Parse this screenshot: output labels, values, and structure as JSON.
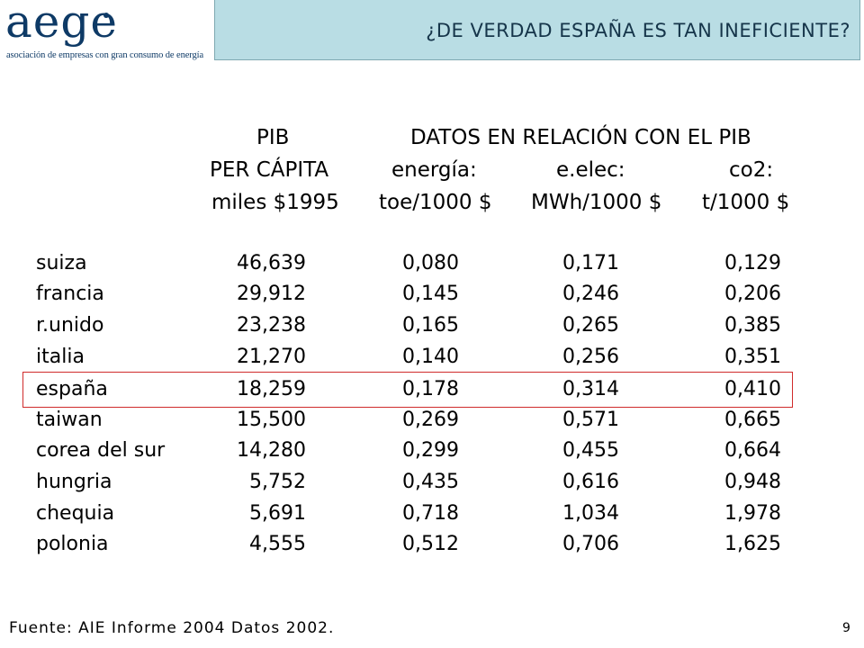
{
  "logo": {
    "wordmark": "aege",
    "tagline": "asociación de empresas con gran consumo de energía",
    "color": "#0e3a66"
  },
  "title": "¿DE VERDAD ESPAÑA ES TAN INEFICIENTE?",
  "header": {
    "pib_line1": "PIB",
    "pib_line2": "PER CÁPITA",
    "pib_line3": "miles $1995",
    "group": "DATOS EN RELACIÓN CON EL PIB",
    "energia_line1": "energía:",
    "energia_line2": "toe/1000 $",
    "elec_line1": "e.elec:",
    "elec_line2": "MWh/1000 $",
    "co2_line1": "co2:",
    "co2_line2": "t/1000 $"
  },
  "rows": [
    {
      "country": "suiza",
      "pib": "46,639",
      "energia": "0,080",
      "elec": "0,171",
      "co2": "0,129"
    },
    {
      "country": "francia",
      "pib": "29,912",
      "energia": "0,145",
      "elec": "0,246",
      "co2": "0,206"
    },
    {
      "country": "r.unido",
      "pib": "23,238",
      "energia": "0,165",
      "elec": "0,265",
      "co2": "0,385"
    },
    {
      "country": "italia",
      "pib": "21,270",
      "energia": "0,140",
      "elec": "0,256",
      "co2": "0,351"
    },
    {
      "country": "españa",
      "pib": "18,259",
      "energia": "0,178",
      "elec": "0,314",
      "co2": "0,410"
    },
    {
      "country": "taiwan",
      "pib": "15,500",
      "energia": "0,269",
      "elec": "0,571",
      "co2": "0,665"
    },
    {
      "country": "corea del sur",
      "pib": "14,280",
      "energia": "0,299",
      "elec": "0,455",
      "co2": "0,664"
    },
    {
      "country": "hungria",
      "pib": "5,752",
      "energia": "0,435",
      "elec": "0,616",
      "co2": "0,948"
    },
    {
      "country": "chequia",
      "pib": "5,691",
      "energia": "0,718",
      "elec": "1,034",
      "co2": "1,978"
    },
    {
      "country": "polonia",
      "pib": "4,555",
      "energia": "0,512",
      "elec": "0,706",
      "co2": "1,625"
    }
  ],
  "highlight_color": "#d02b2b",
  "source": "Fuente: AIE Informe 2004 Datos 2002.",
  "page_number": "9"
}
